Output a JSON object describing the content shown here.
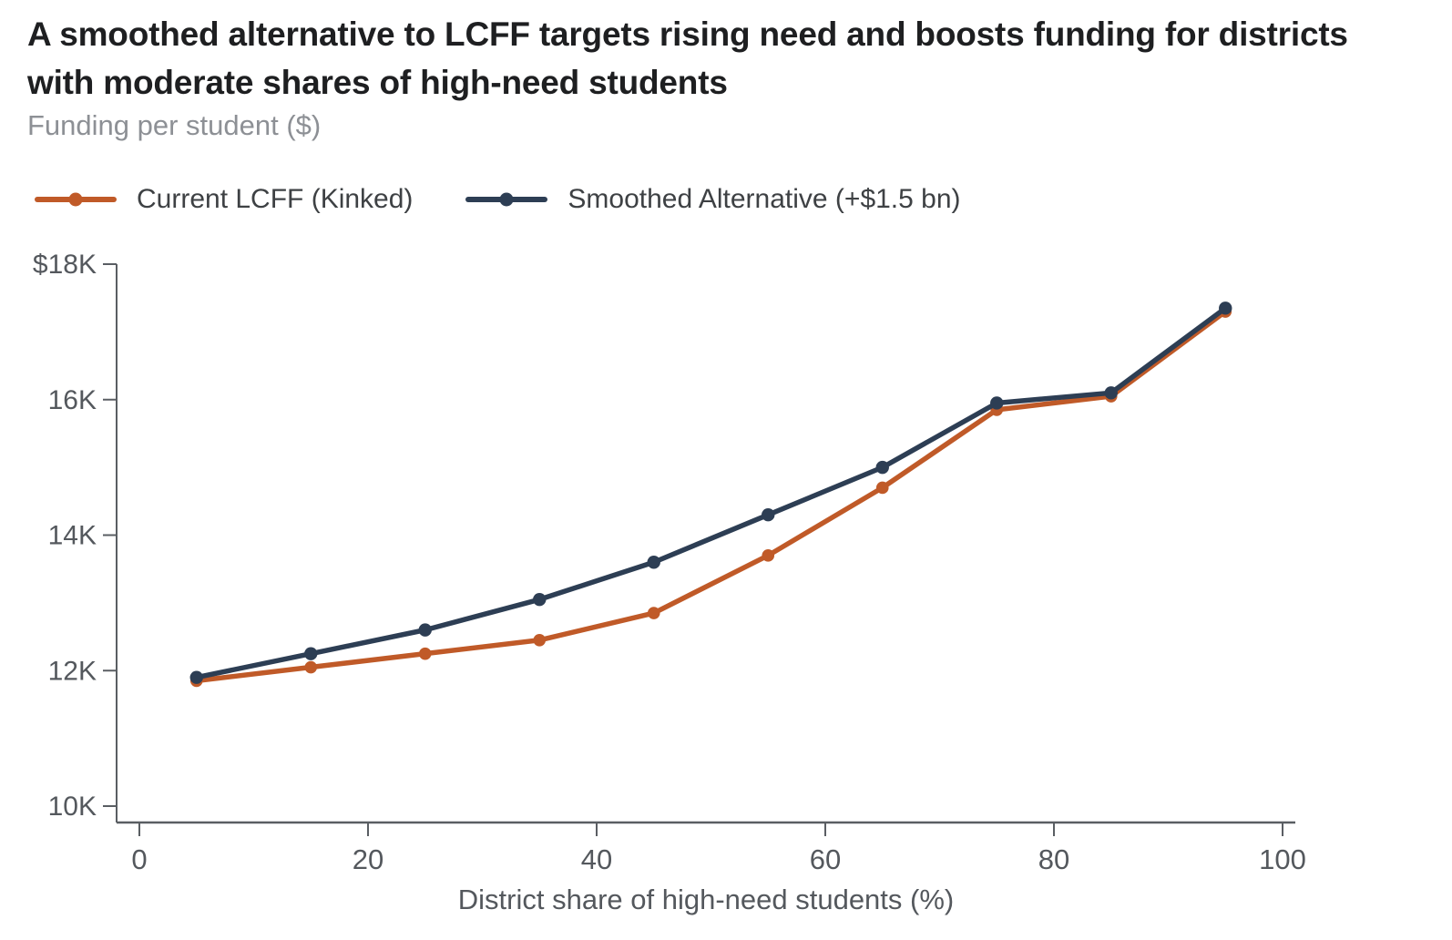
{
  "title": "A smoothed alternative to LCFF targets rising need and boosts funding for districts with moderate shares of high-need students",
  "subtitle": "Funding per student ($)",
  "colors": {
    "title_text": "#1e1f21",
    "subtitle_text": "#8d9095",
    "axis_line": "#5a5e63",
    "tick_label": "#54585d",
    "legend_text": "#3e4144",
    "background": "#ffffff"
  },
  "chart_data": {
    "type": "line",
    "x": [
      5,
      15,
      25,
      35,
      45,
      55,
      65,
      75,
      85,
      95
    ],
    "series": [
      {
        "name": "Current LCFF (Kinked)",
        "color": "#c05a28",
        "values": [
          11850,
          12050,
          12250,
          12450,
          12850,
          13700,
          14700,
          15850,
          16050,
          17300
        ]
      },
      {
        "name": "Smoothed Alternative (+$1.5 bn)",
        "color": "#2d3e54",
        "values": [
          11900,
          12250,
          12600,
          13050,
          13600,
          14300,
          15000,
          15950,
          16100,
          17350
        ]
      }
    ],
    "title": "A smoothed alternative to LCFF targets rising need and boosts funding for districts with moderate shares of high-need students",
    "xlabel": "District share of high-need students (%)",
    "ylabel": "Funding per student ($)",
    "xlim": [
      0,
      100
    ],
    "ylim": [
      10000,
      18000
    ],
    "x_ticks": [
      {
        "value": 0,
        "label": "0"
      },
      {
        "value": 20,
        "label": "20"
      },
      {
        "value": 40,
        "label": "40"
      },
      {
        "value": 60,
        "label": "60"
      },
      {
        "value": 80,
        "label": "80"
      },
      {
        "value": 100,
        "label": "100"
      }
    ],
    "y_ticks": [
      {
        "value": 18000,
        "label": "$18K"
      },
      {
        "value": 16000,
        "label": "16K"
      },
      {
        "value": 14000,
        "label": "14K"
      },
      {
        "value": 12000,
        "label": "12K"
      },
      {
        "value": 10000,
        "label": "10K"
      }
    ],
    "grid": false,
    "legend_position": "top-left"
  }
}
